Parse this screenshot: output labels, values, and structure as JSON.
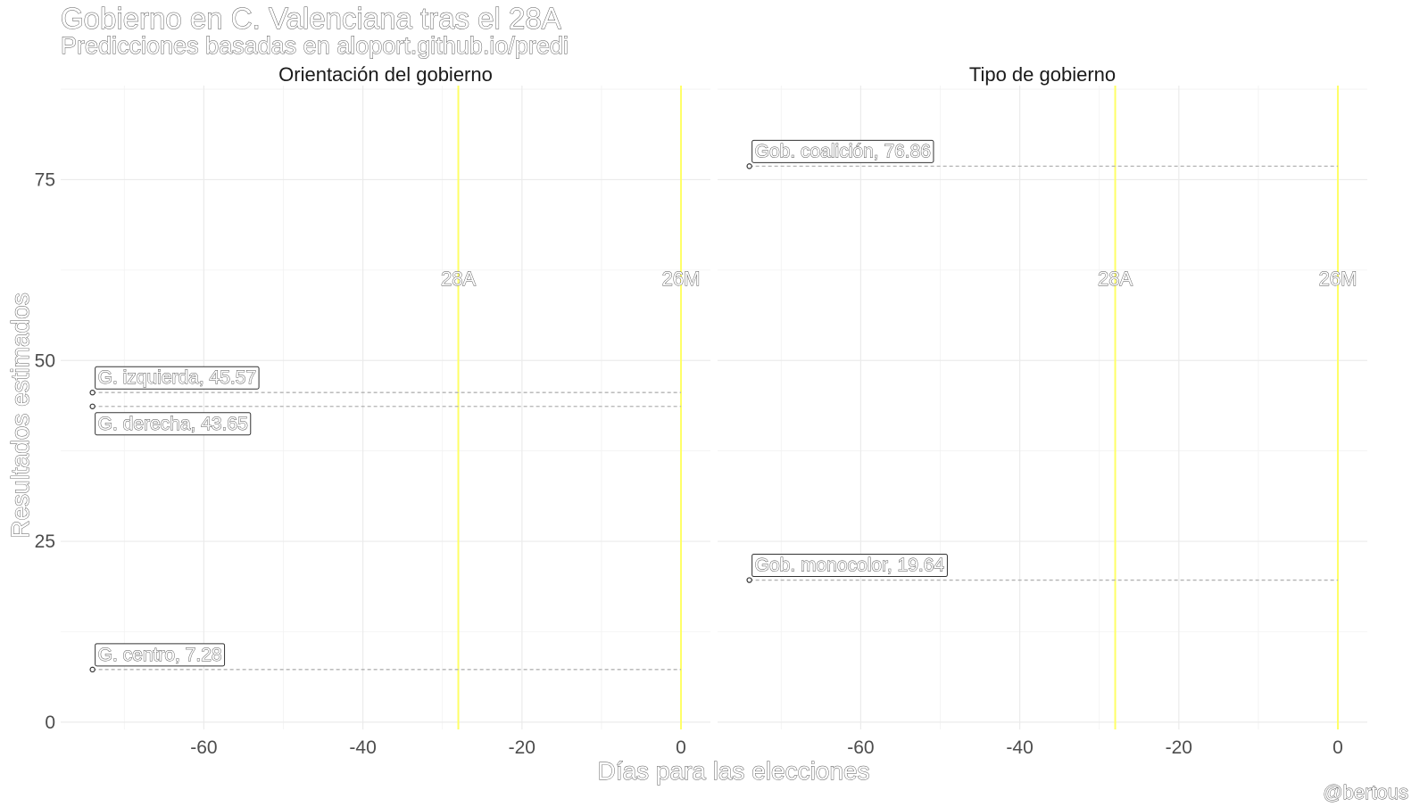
{
  "title": "Gobierno en C. Valenciana tras el 28A",
  "subtitle": "Predicciones basadas en aloport.github.io/predi",
  "caption": "@bertous",
  "chart_data": {
    "type": "line",
    "xlabel": "Días para las elecciones",
    "ylabel": "Resultados estimados",
    "xlim": [
      -78,
      3.7
    ],
    "ylim": [
      -1,
      88
    ],
    "x_ticks": [
      -60,
      -40,
      -20,
      0
    ],
    "y_ticks": [
      0,
      25,
      50,
      75
    ],
    "grid": true,
    "colors": {
      "event_line": "#ffff66",
      "series_line": "#b3b3b3",
      "grid": "#ebebeb"
    },
    "events": [
      {
        "x": -28,
        "label": "28A"
      },
      {
        "x": 0,
        "label": "26M"
      }
    ],
    "facets": [
      {
        "title": "Orientación del gobierno",
        "series": [
          {
            "name": "G. izquierda",
            "label": "G. izquierda, 45.57",
            "x": [
              -74,
              0
            ],
            "values": [
              45.57,
              45.57
            ]
          },
          {
            "name": "G. derecha",
            "label": "G. derecha, 43.65",
            "x": [
              -74,
              0
            ],
            "values": [
              43.65,
              43.65
            ]
          },
          {
            "name": "G. centro",
            "label": "G. centro, 7.28",
            "x": [
              -74,
              0
            ],
            "values": [
              7.28,
              7.28
            ]
          }
        ]
      },
      {
        "title": "Tipo de gobierno",
        "series": [
          {
            "name": "Gob. coalición",
            "label": "Gob. coalición, 76.86",
            "x": [
              -74,
              0
            ],
            "values": [
              76.86,
              76.86
            ]
          },
          {
            "name": "Gob. monocolor",
            "label": "Gob. monocolor, 19.64",
            "x": [
              -74,
              0
            ],
            "values": [
              19.64,
              19.64
            ]
          }
        ]
      }
    ]
  }
}
